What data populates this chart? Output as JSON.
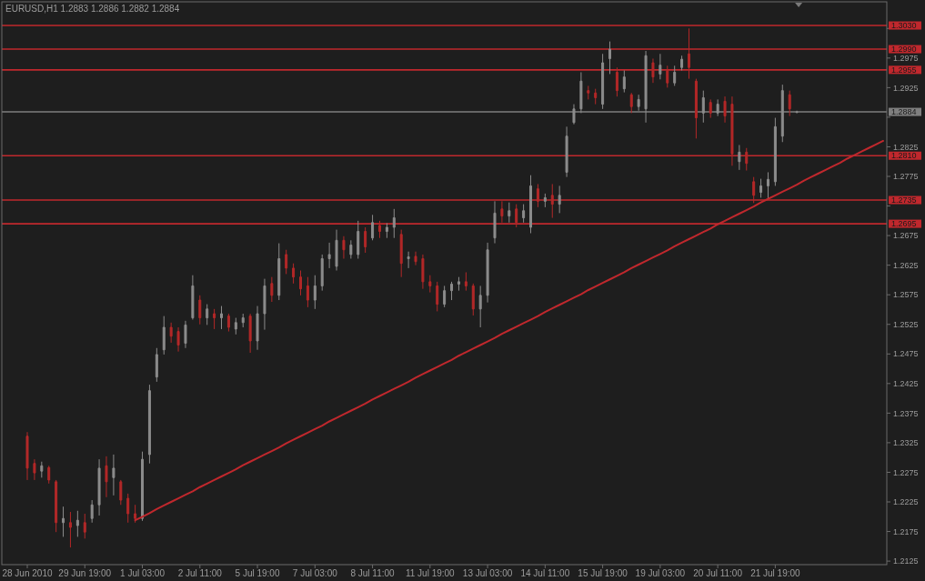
{
  "chart_data": {
    "type": "candlestick",
    "title": "EURUSD,H1 1.2883 1.2886 1.2882 1.2884",
    "categories": [
      "28 Jun 2010",
      null,
      null,
      null,
      null,
      null,
      null,
      null,
      "29 Jun 19:00",
      null,
      null,
      null,
      null,
      null,
      null,
      null,
      "1 Jul 03:00",
      null,
      null,
      null,
      null,
      null,
      null,
      null,
      "2 Jul 11:00",
      null,
      null,
      null,
      null,
      null,
      null,
      null,
      "5 Jul 19:00",
      null,
      null,
      null,
      null,
      null,
      null,
      null,
      "7 Jul 03:00",
      null,
      null,
      null,
      null,
      null,
      null,
      null,
      "8 Jul 11:00",
      null,
      null,
      null,
      null,
      null,
      null,
      null,
      "11 Jul 19:00",
      null,
      null,
      null,
      null,
      null,
      null,
      null,
      "13 Jul 03:00",
      null,
      null,
      null,
      null,
      null,
      null,
      null,
      "14 Jul 11:00",
      null,
      null,
      null,
      null,
      null,
      null,
      null,
      "15 Jul 19:00",
      null,
      null,
      null,
      null,
      null,
      null,
      null,
      "19 Jul 03:00",
      null,
      null,
      null,
      null,
      null,
      null,
      null,
      "20 Jul 11:00",
      null,
      null,
      null,
      null,
      null,
      null,
      null,
      "21 Jul 19:00",
      null,
      null,
      null,
      null,
      null,
      null,
      null,
      null,
      null,
      null,
      null,
      null,
      null,
      null,
      null
    ],
    "ohlc": [
      [
        1.2336,
        1.2343,
        1.2262,
        1.2282
      ],
      [
        1.229,
        1.2297,
        1.2262,
        1.2274
      ],
      [
        1.2277,
        1.2293,
        1.2266,
        1.2286
      ],
      [
        1.2283,
        1.2286,
        1.2256,
        1.2262
      ],
      [
        1.2259,
        1.2262,
        1.2174,
        1.219
      ],
      [
        1.219,
        1.2217,
        1.2166,
        1.2197
      ],
      [
        1.219,
        1.2208,
        1.2148,
        1.2182
      ],
      [
        1.2185,
        1.221,
        1.2166,
        1.2194
      ],
      [
        1.219,
        1.2205,
        1.2163,
        1.2174
      ],
      [
        1.2197,
        1.2228,
        1.219,
        1.222
      ],
      [
        1.222,
        1.2297,
        1.2202,
        1.2282
      ],
      [
        1.2286,
        1.2302,
        1.2233,
        1.2259
      ],
      [
        1.2266,
        1.2305,
        1.2236,
        1.2282
      ],
      [
        1.2259,
        1.2262,
        1.222,
        1.2228
      ],
      [
        1.2231,
        1.2239,
        1.219,
        1.2205
      ],
      [
        1.2205,
        1.222,
        1.219,
        1.2197
      ],
      [
        1.2197,
        1.231,
        1.2193,
        1.2297
      ],
      [
        1.2305,
        1.2423,
        1.229,
        1.2413
      ],
      [
        1.2436,
        1.2485,
        1.2428,
        1.2474
      ],
      [
        1.2482,
        1.2539,
        1.2474,
        1.252
      ],
      [
        1.252,
        1.2528,
        1.2494,
        1.2505
      ],
      [
        1.2513,
        1.252,
        1.2479,
        1.249
      ],
      [
        1.2493,
        1.2531,
        1.2485,
        1.2524
      ],
      [
        1.2536,
        1.2608,
        1.2533,
        1.259
      ],
      [
        1.2566,
        1.2574,
        1.2525,
        1.2536
      ],
      [
        1.2536,
        1.2559,
        1.2524,
        1.2551
      ],
      [
        1.2543,
        1.2551,
        1.2517,
        1.2536
      ],
      [
        1.2536,
        1.2556,
        1.2517,
        1.2543
      ],
      [
        1.2539,
        1.2543,
        1.2513,
        1.252
      ],
      [
        1.2517,
        1.2536,
        1.2508,
        1.2528
      ],
      [
        1.2528,
        1.2543,
        1.252,
        1.2536
      ],
      [
        1.2539,
        1.2543,
        1.2477,
        1.2497
      ],
      [
        1.2497,
        1.2556,
        1.2482,
        1.2543
      ],
      [
        1.2543,
        1.2602,
        1.2516,
        1.259
      ],
      [
        1.2594,
        1.2605,
        1.2563,
        1.2574
      ],
      [
        1.2574,
        1.2662,
        1.2566,
        1.2636
      ],
      [
        1.2643,
        1.2651,
        1.261,
        1.262
      ],
      [
        1.262,
        1.2628,
        1.2594,
        1.2605
      ],
      [
        1.2605,
        1.2616,
        1.2574,
        1.2585
      ],
      [
        1.259,
        1.2605,
        1.2554,
        1.2566
      ],
      [
        1.2566,
        1.2608,
        1.2551,
        1.259
      ],
      [
        1.259,
        1.2643,
        1.2582,
        1.2636
      ],
      [
        1.2636,
        1.2663,
        1.262,
        1.2643
      ],
      [
        1.2623,
        1.2685,
        1.2616,
        1.2667
      ],
      [
        1.2667,
        1.2674,
        1.2636,
        1.2651
      ],
      [
        1.2643,
        1.2667,
        1.2636,
        1.2659
      ],
      [
        1.2643,
        1.27,
        1.2636,
        1.2682
      ],
      [
        1.2682,
        1.2689,
        1.2646,
        1.2656
      ],
      [
        1.2671,
        1.271,
        1.2667,
        1.2697
      ],
      [
        1.2692,
        1.27,
        1.2671,
        1.2682
      ],
      [
        1.2682,
        1.2696,
        1.2671,
        1.2689
      ],
      [
        1.2689,
        1.272,
        1.2671,
        1.2705
      ],
      [
        1.2677,
        1.2685,
        1.2605,
        1.2628
      ],
      [
        1.2636,
        1.2648,
        1.262,
        1.2639
      ],
      [
        1.264,
        1.2648,
        1.2625,
        1.2631
      ],
      [
        1.2636,
        1.2643,
        1.2585,
        1.2597
      ],
      [
        1.2597,
        1.2608,
        1.2579,
        1.259
      ],
      [
        1.259,
        1.2597,
        1.2547,
        1.2559
      ],
      [
        1.2559,
        1.259,
        1.2554,
        1.2582
      ],
      [
        1.2582,
        1.2597,
        1.2566,
        1.2593
      ],
      [
        1.2593,
        1.2605,
        1.2582,
        1.2597
      ],
      [
        1.2597,
        1.2613,
        1.2582,
        1.259
      ],
      [
        1.259,
        1.2594,
        1.254,
        1.2551
      ],
      [
        1.2551,
        1.259,
        1.252,
        1.2574
      ],
      [
        1.2574,
        1.2663,
        1.2562,
        1.2651
      ],
      [
        1.2671,
        1.2733,
        1.2662,
        1.2713
      ],
      [
        1.272,
        1.2733,
        1.2697,
        1.2708
      ],
      [
        1.2708,
        1.2731,
        1.2697,
        1.2717
      ],
      [
        1.272,
        1.2728,
        1.2689,
        1.2697
      ],
      [
        1.2705,
        1.2728,
        1.2697,
        1.2717
      ],
      [
        1.2689,
        1.2777,
        1.2679,
        1.2759
      ],
      [
        1.2754,
        1.2762,
        1.2723,
        1.2733
      ],
      [
        1.2733,
        1.2746,
        1.2723,
        1.2739
      ],
      [
        1.2743,
        1.2762,
        1.2705,
        1.2728
      ],
      [
        1.2728,
        1.2759,
        1.2713,
        1.2743
      ],
      [
        1.2782,
        1.2859,
        1.2774,
        1.2843
      ],
      [
        1.2866,
        1.2897,
        1.2863,
        1.2889
      ],
      [
        1.2889,
        1.2951,
        1.2882,
        1.2936
      ],
      [
        1.292,
        1.2928,
        1.2905,
        1.2916
      ],
      [
        1.2916,
        1.2923,
        1.2897,
        1.2908
      ],
      [
        1.2897,
        1.2982,
        1.2889,
        1.2967
      ],
      [
        1.2974,
        1.3003,
        1.2948,
        1.299
      ],
      [
        1.2951,
        1.2959,
        1.291,
        1.292
      ],
      [
        1.2923,
        1.2954,
        1.2917,
        1.2943
      ],
      [
        1.2913,
        1.2916,
        1.2882,
        1.2893
      ],
      [
        1.2893,
        1.2913,
        1.2886,
        1.2905
      ],
      [
        1.2889,
        1.2987,
        1.2866,
        1.2979
      ],
      [
        1.2967,
        1.2974,
        1.2933,
        1.2943
      ],
      [
        1.2948,
        1.2982,
        1.2939,
        1.2963
      ],
      [
        1.2954,
        1.2962,
        1.2925,
        1.2933
      ],
      [
        1.2933,
        1.2962,
        1.2928,
        1.2951
      ],
      [
        1.2959,
        1.2979,
        1.2954,
        1.2973
      ],
      [
        1.2982,
        1.3025,
        1.294,
        1.2959
      ],
      [
        1.2936,
        1.294,
        1.2839,
        1.2874
      ],
      [
        1.2882,
        1.292,
        1.2866,
        1.2908
      ],
      [
        1.29,
        1.2905,
        1.2874,
        1.2882
      ],
      [
        1.2882,
        1.2905,
        1.2877,
        1.2897
      ],
      [
        1.2902,
        1.291,
        1.2866,
        1.2877
      ],
      [
        1.2897,
        1.291,
        1.2793,
        1.2813
      ],
      [
        1.28,
        1.2828,
        1.2786,
        1.2816
      ],
      [
        1.2816,
        1.2823,
        1.2785,
        1.2797
      ],
      [
        1.2766,
        1.2774,
        1.273,
        1.2743
      ],
      [
        1.2748,
        1.2771,
        1.2739,
        1.2759
      ],
      [
        1.2759,
        1.2782,
        1.2736,
        1.277
      ],
      [
        1.2766,
        1.2874,
        1.2759,
        1.2859
      ],
      [
        1.2843,
        1.293,
        1.2833,
        1.292
      ],
      [
        1.2913,
        1.292,
        1.2877,
        1.2889
      ],
      [
        1.2883,
        1.2886,
        1.2882,
        1.2884
      ],
      null,
      null,
      null,
      null,
      null,
      null,
      null,
      null,
      null,
      null,
      null,
      null
    ],
    "colors": [
      "#b32828",
      "#b32828",
      "#8c8c8c",
      "#b32828",
      "#b32828",
      "#8c8c8c",
      "#b32828",
      "#8c8c8c",
      "#b32828",
      "#8c8c8c",
      "#8c8c8c",
      "#b32828",
      "#8c8c8c",
      "#b32828",
      "#b32828",
      "#b32828",
      "#8c8c8c",
      "#8c8c8c",
      "#8c8c8c",
      "#8c8c8c",
      "#b32828",
      "#b32828",
      "#8c8c8c",
      "#8c8c8c",
      "#b32828",
      "#8c8c8c",
      "#b32828",
      "#8c8c8c",
      "#b32828",
      "#8c8c8c",
      "#8c8c8c",
      "#b32828",
      "#8c8c8c",
      "#8c8c8c",
      "#b32828",
      "#8c8c8c",
      "#b32828",
      "#b32828",
      "#b32828",
      "#b32828",
      "#8c8c8c",
      "#8c8c8c",
      "#8c8c8c",
      "#8c8c8c",
      "#b32828",
      "#8c8c8c",
      "#8c8c8c",
      "#b32828",
      "#8c8c8c",
      "#b32828",
      "#8c8c8c",
      "#8c8c8c",
      "#b32828",
      "#8c8c8c",
      "#b32828",
      "#b32828",
      "#b32828",
      "#b32828",
      "#8c8c8c",
      "#8c8c8c",
      "#8c8c8c",
      "#b32828",
      "#b32828",
      "#8c8c8c",
      "#8c8c8c",
      "#8c8c8c",
      "#b32828",
      "#8c8c8c",
      "#b32828",
      "#8c8c8c",
      "#8c8c8c",
      "#b32828",
      "#8c8c8c",
      "#b32828",
      "#8c8c8c",
      "#8c8c8c",
      "#8c8c8c",
      "#8c8c8c",
      "#b32828",
      "#b32828",
      "#8c8c8c",
      "#8c8c8c",
      "#b32828",
      "#8c8c8c",
      "#b32828",
      "#8c8c8c",
      "#8c8c8c",
      "#b32828",
      "#8c8c8c",
      "#b32828",
      "#8c8c8c",
      "#8c8c8c",
      "#b32828",
      "#b32828",
      "#8c8c8c",
      "#b32828",
      "#8c8c8c",
      "#b32828",
      "#b32828",
      "#8c8c8c",
      "#b32828",
      "#b32828",
      "#8c8c8c",
      "#8c8c8c",
      "#8c8c8c",
      "#8c8c8c",
      "#b32828",
      "#8c8c8c",
      null,
      null,
      null,
      null,
      null,
      null,
      null,
      null,
      null,
      null,
      null,
      null
    ],
    "ylim": [
      1.2119,
      1.307
    ],
    "yticks": [
      1.2125,
      1.2175,
      1.2225,
      1.2275,
      1.2325,
      1.2375,
      1.2425,
      1.2475,
      1.2525,
      1.2575,
      1.2625,
      1.2675,
      {
        "value": 1.2725,
        "label": null
      },
      1.2775,
      1.2825,
      {
        "value": 1.2875,
        "label": null
      },
      1.2925,
      1.2975,
      {
        "value": 1.3025,
        "label": null
      }
    ],
    "ref_lines": [
      {
        "axis": "y",
        "value": 1.303,
        "label": "1.3030",
        "color": "#c0282d"
      },
      {
        "axis": "y",
        "value": 1.299,
        "label": "1.2990",
        "color": "#c0282d"
      },
      {
        "axis": "y",
        "value": 1.2955,
        "label": "1.2955",
        "color": "#c0282d"
      },
      {
        "axis": "y",
        "value": 1.2884,
        "label": "1.2884",
        "color": "#7f7f7f"
      },
      {
        "axis": "y",
        "value": 1.281,
        "label": "1.2810",
        "color": "#c0282d"
      },
      {
        "axis": "y",
        "value": 1.2735,
        "label": "1.2735",
        "color": "#c0282d"
      },
      {
        "axis": "y",
        "value": 1.2695,
        "label": "1.2695",
        "color": "#c0282d"
      }
    ],
    "series": [
      {
        "type": "line",
        "color": "#c0282d",
        "values": [
          null,
          null,
          null,
          null,
          null,
          null,
          null,
          null,
          null,
          null,
          null,
          null,
          null,
          null,
          null,
          1.2194,
          1.22,
          1.2206,
          1.2213,
          1.2219,
          1.2225,
          1.2231,
          1.2237,
          1.2243,
          1.225,
          1.2256,
          1.2262,
          1.2268,
          1.2274,
          1.228,
          1.2287,
          1.2293,
          1.2299,
          1.2305,
          1.2311,
          1.2317,
          1.2324,
          1.233,
          1.2336,
          1.2342,
          1.2348,
          1.2354,
          1.2361,
          1.2367,
          1.2373,
          1.2379,
          1.2385,
          1.2391,
          1.2398,
          1.2404,
          1.241,
          1.2416,
          1.2422,
          1.2428,
          1.2435,
          1.2441,
          1.2447,
          1.2453,
          1.2459,
          1.2465,
          1.2472,
          1.2478,
          1.2484,
          1.249,
          1.2496,
          1.2502,
          1.2509,
          1.2515,
          1.2521,
          1.2527,
          1.2533,
          1.2539,
          1.2546,
          1.2552,
          1.2558,
          1.2564,
          1.257,
          1.2576,
          1.2583,
          1.2589,
          1.2595,
          1.2601,
          1.2607,
          1.2613,
          1.262,
          1.2626,
          1.2632,
          1.2638,
          1.2644,
          1.265,
          1.2657,
          1.2663,
          1.2669,
          1.2675,
          1.2681,
          1.2687,
          1.2694,
          1.27,
          1.2706,
          1.2712,
          1.2718,
          1.2724,
          1.2731,
          1.2737,
          1.2743,
          1.2749,
          1.2755,
          1.2761,
          1.2768,
          1.2774,
          1.278,
          1.2786,
          1.2792,
          1.2798,
          1.2805,
          1.2811,
          1.2817,
          1.2823,
          1.2829,
          1.2835
        ]
      }
    ]
  }
}
